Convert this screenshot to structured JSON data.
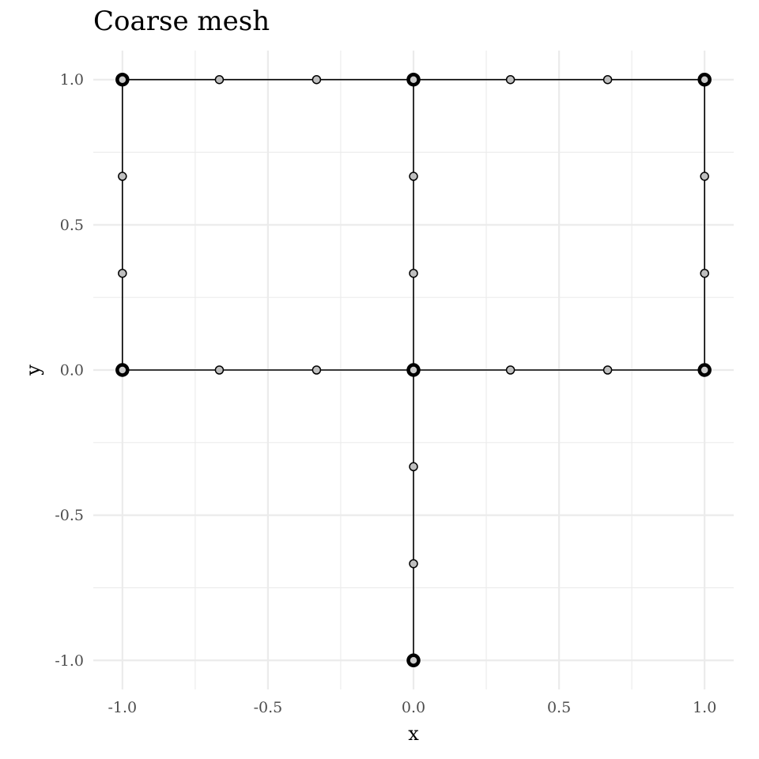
{
  "chart_data": {
    "type": "scatter",
    "title": "Coarse mesh",
    "xlabel": "x",
    "ylabel": "y",
    "xlim": [
      -1.1,
      1.1
    ],
    "ylim": [
      -1.1,
      1.1
    ],
    "x_ticks": [
      -1.0,
      -0.5,
      0.0,
      0.5,
      1.0
    ],
    "y_ticks": [
      -1.0,
      -0.5,
      0.0,
      0.5,
      1.0
    ],
    "x_tick_labels": [
      "-1.0",
      "-0.5",
      "0.0",
      "0.5",
      "1.0"
    ],
    "y_tick_labels": [
      "-1.0",
      "-0.5",
      "0.0",
      "0.5",
      "1.0"
    ],
    "x_minor_ticks": [
      -0.75,
      -0.25,
      0.25,
      0.75
    ],
    "y_minor_ticks": [
      -0.75,
      -0.25,
      0.25,
      0.75
    ],
    "grid": true,
    "edges": [
      [
        [
          -1,
          1
        ],
        [
          0,
          1
        ]
      ],
      [
        [
          0,
          1
        ],
        [
          1,
          1
        ]
      ],
      [
        [
          -1,
          0
        ],
        [
          0,
          0
        ]
      ],
      [
        [
          0,
          0
        ],
        [
          1,
          0
        ]
      ],
      [
        [
          -1,
          0
        ],
        [
          -1,
          1
        ]
      ],
      [
        [
          0,
          0
        ],
        [
          0,
          1
        ]
      ],
      [
        [
          1,
          0
        ],
        [
          1,
          1
        ]
      ],
      [
        [
          0,
          -1
        ],
        [
          0,
          0
        ]
      ]
    ],
    "major_nodes": [
      [
        -1,
        1
      ],
      [
        0,
        1
      ],
      [
        1,
        1
      ],
      [
        -1,
        0
      ],
      [
        0,
        0
      ],
      [
        1,
        0
      ],
      [
        0,
        -1
      ]
    ],
    "minor_nodes": [
      [
        -0.667,
        1
      ],
      [
        -0.333,
        1
      ],
      [
        0.333,
        1
      ],
      [
        0.667,
        1
      ],
      [
        -0.667,
        0
      ],
      [
        -0.333,
        0
      ],
      [
        0.333,
        0
      ],
      [
        0.667,
        0
      ],
      [
        -1,
        0.333
      ],
      [
        -1,
        0.667
      ],
      [
        0,
        0.333
      ],
      [
        0,
        0.667
      ],
      [
        1,
        0.333
      ],
      [
        1,
        0.667
      ],
      [
        0,
        -0.333
      ],
      [
        0,
        -0.667
      ]
    ]
  }
}
